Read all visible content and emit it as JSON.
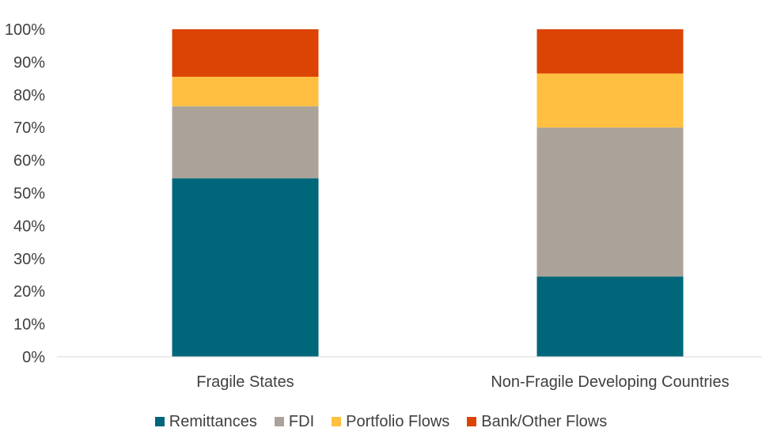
{
  "chart_data": {
    "type": "bar",
    "stacked": true,
    "categories": [
      "Fragile States",
      "Non-Fragile Developing Countries"
    ],
    "series": [
      {
        "name": "Remittances",
        "color": "#00667A",
        "values": [
          54.5,
          24.5
        ]
      },
      {
        "name": "FDI",
        "color": "#ABA39A",
        "values": [
          22.0,
          45.5
        ]
      },
      {
        "name": "Portfolio Flows",
        "color": "#FFBF40",
        "values": [
          9.0,
          16.5
        ]
      },
      {
        "name": "Bank/Other Flows",
        "color": "#DC4405",
        "values": [
          14.5,
          13.5
        ]
      }
    ],
    "yticks": [
      "0%",
      "10%",
      "20%",
      "30%",
      "40%",
      "50%",
      "60%",
      "70%",
      "80%",
      "90%",
      "100%"
    ],
    "ylim": [
      0,
      100
    ],
    "title": "",
    "xlabel": "",
    "ylabel": "",
    "grid": false,
    "legend_position": "bottom"
  }
}
